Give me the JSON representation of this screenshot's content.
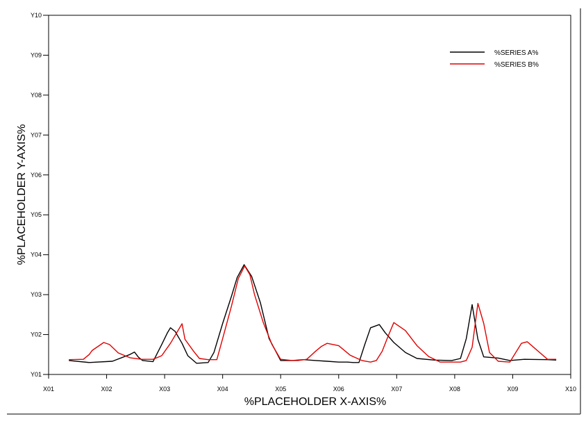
{
  "chart_data": {
    "type": "line",
    "title": "",
    "xlabel": "%PLACEHOLDER X-AXIS%",
    "ylabel": "%PLACEHOLDER Y-AXIS%",
    "xlim": [
      1,
      10
    ],
    "ylim": [
      1,
      10
    ],
    "x_ticks": [
      1,
      2,
      3,
      4,
      5,
      6,
      7,
      8,
      9,
      10
    ],
    "x_tick_labels": [
      "X01",
      "X02",
      "X03",
      "X04",
      "X05",
      "X06",
      "X07",
      "X08",
      "X09",
      "X10"
    ],
    "y_ticks": [
      1,
      2,
      3,
      4,
      5,
      6,
      7,
      8,
      9,
      10
    ],
    "y_tick_labels": [
      "Y01",
      "Y02",
      "Y03",
      "Y04",
      "Y05",
      "Y06",
      "Y07",
      "Y08",
      "Y09",
      "Y10"
    ],
    "grid": false,
    "legend_position": "top-right",
    "series": [
      {
        "name": "%SERIES A%",
        "color": "#000000",
        "x": [
          1.35,
          1.7,
          2.1,
          2.4,
          2.48,
          2.55,
          2.62,
          2.8,
          2.95,
          3.05,
          3.1,
          3.18,
          3.3,
          3.4,
          3.55,
          3.75,
          3.85,
          4.0,
          4.15,
          4.25,
          4.37,
          4.5,
          4.65,
          4.8,
          5.0,
          5.2,
          5.4,
          5.6,
          5.8,
          6.0,
          6.15,
          6.25,
          6.35,
          6.45,
          6.55,
          6.7,
          6.8,
          6.95,
          7.15,
          7.35,
          7.65,
          7.95,
          8.1,
          8.2,
          8.3,
          8.4,
          8.5,
          8.75,
          8.95,
          9.2,
          9.6,
          9.75
        ],
        "y": [
          1.35,
          1.3,
          1.33,
          1.5,
          1.56,
          1.43,
          1.35,
          1.32,
          1.75,
          2.05,
          2.17,
          2.08,
          1.78,
          1.47,
          1.28,
          1.3,
          1.55,
          2.28,
          2.95,
          3.43,
          3.75,
          3.46,
          2.8,
          1.9,
          1.35,
          1.35,
          1.37,
          1.35,
          1.33,
          1.31,
          1.31,
          1.3,
          1.3,
          1.75,
          2.17,
          2.25,
          2.05,
          1.8,
          1.55,
          1.4,
          1.36,
          1.35,
          1.4,
          1.9,
          2.75,
          1.88,
          1.44,
          1.41,
          1.35,
          1.38,
          1.37,
          1.36
        ]
      },
      {
        "name": "%SERIES B%",
        "color": "#e00000",
        "x": [
          1.35,
          1.6,
          1.7,
          1.75,
          1.95,
          2.05,
          2.2,
          2.4,
          2.6,
          2.8,
          2.95,
          3.1,
          3.3,
          3.35,
          3.5,
          3.6,
          3.75,
          3.9,
          4.0,
          4.15,
          4.27,
          4.38,
          4.47,
          4.55,
          4.7,
          4.85,
          5.0,
          5.2,
          5.3,
          5.45,
          5.6,
          5.7,
          5.8,
          6.0,
          6.2,
          6.4,
          6.55,
          6.65,
          6.75,
          6.85,
          6.95,
          7.15,
          7.35,
          7.55,
          7.75,
          7.95,
          8.1,
          8.2,
          8.3,
          8.4,
          8.5,
          8.6,
          8.75,
          8.95,
          9.15,
          9.25,
          9.6,
          9.75
        ],
        "y": [
          1.37,
          1.38,
          1.5,
          1.6,
          1.8,
          1.75,
          1.54,
          1.42,
          1.38,
          1.38,
          1.47,
          1.78,
          2.27,
          1.88,
          1.58,
          1.4,
          1.37,
          1.37,
          1.9,
          2.7,
          3.4,
          3.72,
          3.5,
          3.0,
          2.3,
          1.75,
          1.38,
          1.35,
          1.35,
          1.38,
          1.58,
          1.7,
          1.78,
          1.72,
          1.48,
          1.35,
          1.31,
          1.35,
          1.58,
          1.95,
          2.3,
          2.1,
          1.72,
          1.45,
          1.31,
          1.31,
          1.31,
          1.35,
          1.68,
          2.78,
          2.28,
          1.55,
          1.33,
          1.31,
          1.78,
          1.82,
          1.38,
          1.38
        ]
      }
    ]
  }
}
